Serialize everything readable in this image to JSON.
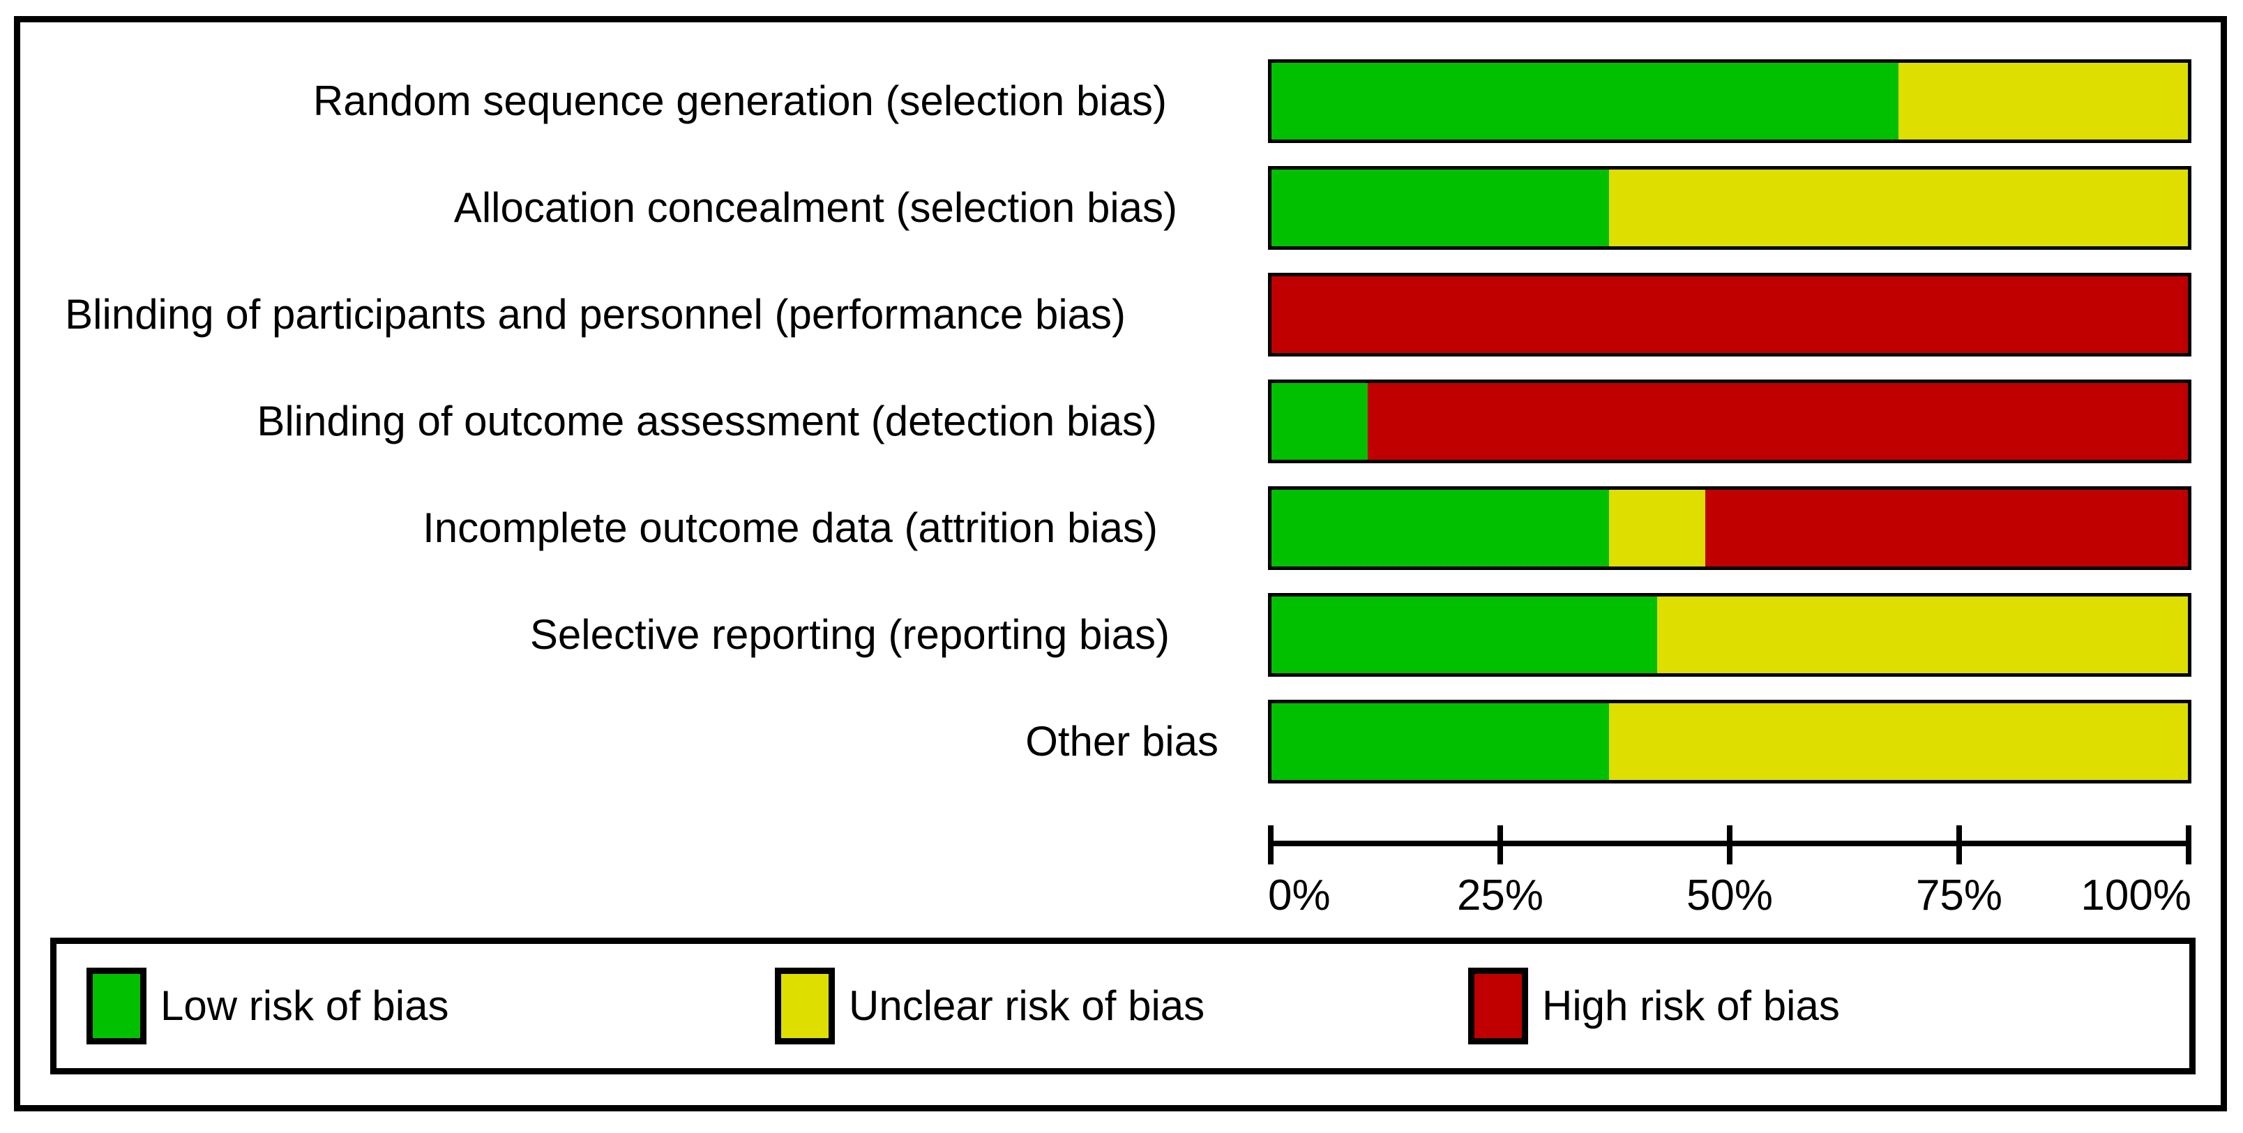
{
  "colors": {
    "low": "#00C000",
    "unclear": "#DEDE00",
    "high": "#C00000",
    "border": "#000000",
    "background": "#FFFFFF"
  },
  "axis": {
    "tick_labels": [
      "0%",
      "25%",
      "50%",
      "75%",
      "100%"
    ]
  },
  "legend": {
    "items": [
      {
        "key": "low",
        "label": "Low risk of bias"
      },
      {
        "key": "unclear",
        "label": "Unclear risk of bias"
      },
      {
        "key": "high",
        "label": "High risk of bias"
      }
    ]
  },
  "chart_data": {
    "type": "bar",
    "orientation": "horizontal",
    "stacked": true,
    "categories": [
      "Random sequence generation (selection bias)",
      "Allocation concealment (selection bias)",
      "Blinding of participants and personnel (performance bias)",
      "Blinding of outcome assessment (detection bias)",
      "Incomplete outcome data (attrition bias)",
      "Selective reporting (reporting bias)",
      "Other bias"
    ],
    "series": [
      {
        "key": "low",
        "name": "Low risk of bias",
        "color": "#00C000",
        "values": [
          68.4,
          36.8,
          0,
          10.5,
          36.8,
          42.1,
          36.8
        ]
      },
      {
        "key": "unclear",
        "name": "Unclear risk of bias",
        "color": "#DEDE00",
        "values": [
          31.6,
          63.2,
          0,
          0,
          10.5,
          57.9,
          63.2
        ]
      },
      {
        "key": "high",
        "name": "High risk of bias",
        "color": "#C00000",
        "values": [
          0,
          0,
          100,
          89.5,
          52.6,
          0,
          0
        ]
      }
    ],
    "xlim": [
      0,
      100
    ],
    "x_tick_labels": [
      "0%",
      "25%",
      "50%",
      "75%",
      "100%"
    ],
    "legend_position": "bottom",
    "grid": false
  }
}
